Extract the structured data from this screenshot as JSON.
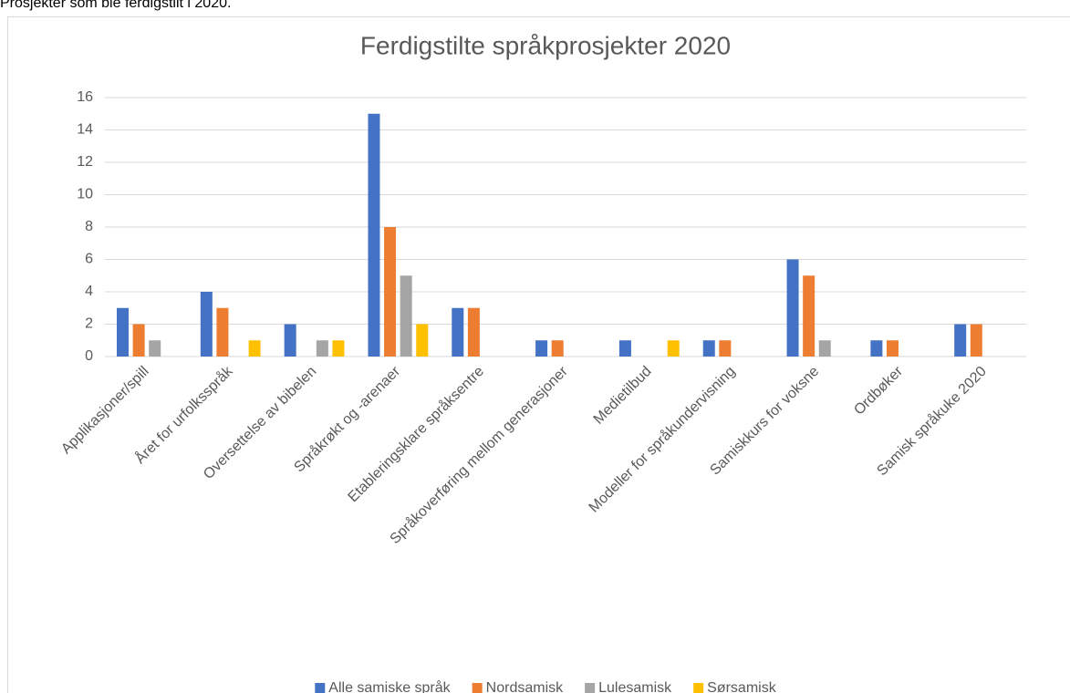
{
  "heading": "Prosjekter som ble ferdigstilt i 2020.",
  "chart_data": {
    "type": "bar",
    "title": "Ferdigstilte språkprosjekter 2020",
    "categories": [
      "Applikasjoner/spill",
      "Året for urfolksspråk",
      "Oversettelse av bibelen",
      "Språkrøkt og -arenaer",
      "Etableringsklare språksentre",
      "Språkoverføring mellom generasjoner",
      "Medietilbud",
      "Modeller for språkundervisning",
      "Samiskkurs for voksne",
      "Ordbøker",
      "Samisk språkuke 2020"
    ],
    "series": [
      {
        "name": "Alle samiske språk",
        "color": "#4472c4",
        "values": [
          3,
          4,
          2,
          15,
          3,
          1,
          1,
          1,
          6,
          1,
          2
        ]
      },
      {
        "name": "Nordsamisk",
        "color": "#ed7d31",
        "values": [
          2,
          3,
          0,
          8,
          3,
          1,
          0,
          1,
          5,
          1,
          2
        ]
      },
      {
        "name": "Lulesamisk",
        "color": "#a5a5a5",
        "values": [
          1,
          0,
          1,
          5,
          0,
          0,
          0,
          0,
          1,
          0,
          0
        ]
      },
      {
        "name": "Sørsamisk",
        "color": "#ffc000",
        "values": [
          0,
          1,
          1,
          2,
          0,
          0,
          1,
          0,
          0,
          0,
          0
        ]
      }
    ],
    "ylim": [
      0,
      16
    ],
    "yticks": [
      0,
      2,
      4,
      6,
      8,
      10,
      12,
      14,
      16
    ],
    "grid": true,
    "legend": "bottom"
  }
}
